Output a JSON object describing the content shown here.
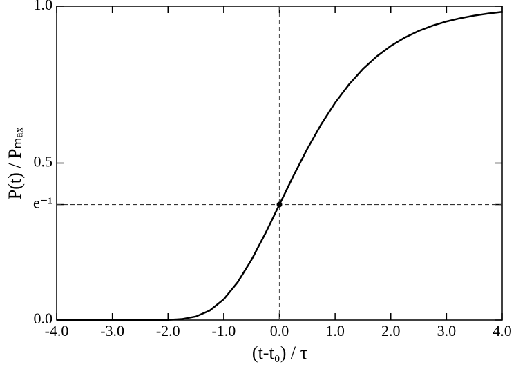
{
  "chart_data": {
    "type": "line",
    "xlabel": "(t-t₀) / τ",
    "ylabel": "P(t)  /  Pₘₐₓ",
    "x": [
      -4,
      -3.75,
      -3.5,
      -3.25,
      -3,
      -2.75,
      -2.5,
      -2.25,
      -2,
      -1.75,
      -1.5,
      -1.25,
      -1,
      -0.75,
      -0.5,
      -0.25,
      0,
      0.25,
      0.5,
      0.75,
      1,
      1.25,
      1.5,
      1.75,
      2,
      2.25,
      2.5,
      2.75,
      3,
      3.25,
      3.5,
      3.75,
      4
    ],
    "series": [
      {
        "color": "#000000",
        "values": [
          0,
          0,
          0,
          0,
          0,
          0,
          0,
          0.0001,
          0.0006,
          0.0032,
          0.0113,
          0.0305,
          0.066,
          0.1204,
          0.1923,
          0.2769,
          0.3679,
          0.4589,
          0.5452,
          0.6235,
          0.6922,
          0.7509,
          0.8,
          0.8405,
          0.8734,
          0.9,
          0.9212,
          0.9381,
          0.9514,
          0.9619,
          0.9702,
          0.9767,
          0.9819
        ]
      }
    ],
    "marker": {
      "x": 0,
      "y": 0.368
    },
    "xlim": [
      -4,
      4
    ],
    "ylim": [
      0,
      1
    ],
    "xticks": [
      {
        "value": -4,
        "label": "-4.0"
      },
      {
        "value": -3,
        "label": "-3.0"
      },
      {
        "value": -2,
        "label": "-2.0"
      },
      {
        "value": -1,
        "label": "-1.0"
      },
      {
        "value": 0,
        "label": "0.0"
      },
      {
        "value": 1,
        "label": "1.0"
      },
      {
        "value": 2,
        "label": "2.0"
      },
      {
        "value": 3,
        "label": "3.0"
      },
      {
        "value": 4,
        "label": "4.0"
      }
    ],
    "yticks": [
      {
        "value": 0,
        "label": "0.0"
      },
      {
        "value": 0.368,
        "label": "e⁻¹"
      },
      {
        "value": 0.5,
        "label": "0.5"
      },
      {
        "value": 1,
        "label": "1.0"
      }
    ]
  }
}
